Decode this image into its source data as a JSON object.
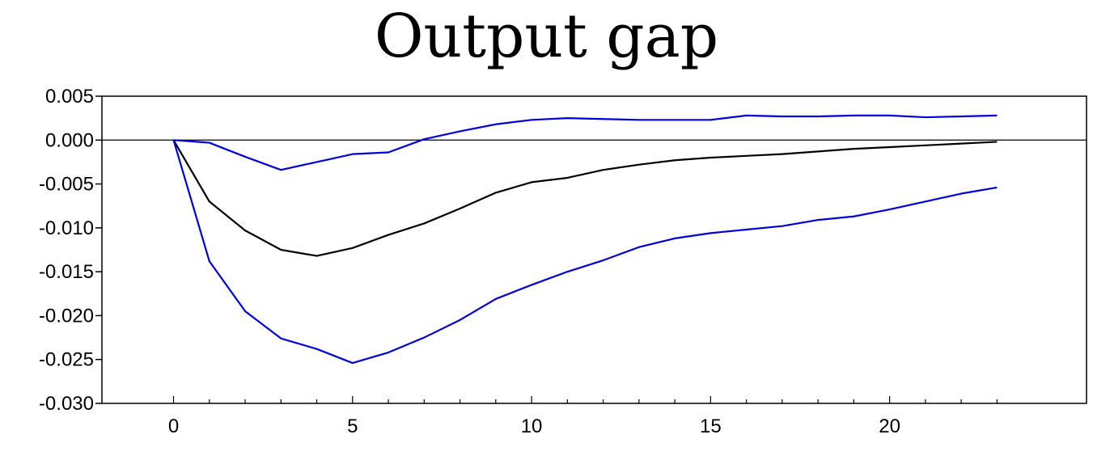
{
  "chart_data": {
    "type": "line",
    "title": "Output gap",
    "xlabel": "",
    "ylabel": "",
    "xlim": [
      -2,
      25.5
    ],
    "ylim": [
      -0.03,
      0.005
    ],
    "x": [
      0,
      1,
      2,
      3,
      4,
      5,
      6,
      7,
      8,
      9,
      10,
      11,
      12,
      13,
      14,
      15,
      16,
      17,
      18,
      19,
      20,
      21,
      22,
      23
    ],
    "x_ticks": [
      0,
      5,
      10,
      15,
      20
    ],
    "x_tick_labels": [
      "0",
      "5",
      "10",
      "15",
      "20"
    ],
    "y_ticks": [
      0.005,
      0.0,
      -0.005,
      -0.01,
      -0.015,
      -0.02,
      -0.025,
      -0.03
    ],
    "y_tick_labels": [
      "0.005",
      "0.000",
      "-0.005",
      "-0.010",
      "-0.015",
      "-0.020",
      "-0.025",
      "-0.030"
    ],
    "zero_line": true,
    "grid": false,
    "legend": "none",
    "series": [
      {
        "color": "#0000dd",
        "values": [
          0.0,
          -0.0003,
          -0.0019,
          -0.0034,
          -0.0025,
          -0.0016,
          -0.0014,
          0.0001,
          0.001,
          0.0018,
          0.0023,
          0.0025,
          0.0024,
          0.0023,
          0.0023,
          0.0023,
          0.0028,
          0.0027,
          0.0027,
          0.0028,
          0.0028,
          0.0026,
          0.0027,
          0.0028
        ]
      },
      {
        "color": "#000000",
        "values": [
          0.0,
          -0.007,
          -0.0103,
          -0.0125,
          -0.0132,
          -0.0123,
          -0.0108,
          -0.0095,
          -0.0078,
          -0.006,
          -0.0048,
          -0.0043,
          -0.0034,
          -0.0028,
          -0.0023,
          -0.002,
          -0.0018,
          -0.0016,
          -0.0013,
          -0.001,
          -0.0008,
          -0.0006,
          -0.0004,
          -0.0002
        ]
      },
      {
        "color": "#0000dd",
        "values": [
          0.0,
          -0.0138,
          -0.0195,
          -0.0226,
          -0.0238,
          -0.0254,
          -0.0242,
          -0.0225,
          -0.0205,
          -0.0181,
          -0.0165,
          -0.015,
          -0.0137,
          -0.0122,
          -0.0112,
          -0.0106,
          -0.0102,
          -0.0098,
          -0.0091,
          -0.0087,
          -0.0079,
          -0.007,
          -0.0061,
          -0.0054
        ]
      }
    ]
  }
}
